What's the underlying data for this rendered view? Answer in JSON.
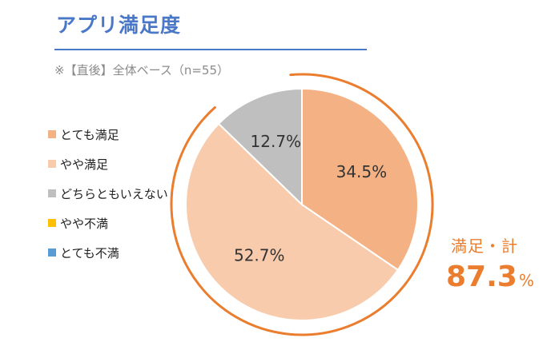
{
  "title": "アプリ満足度",
  "subtitle": "※【直後】全体ベース（n=55）",
  "chart_data": {
    "type": "pie",
    "categories": [
      "とても満足",
      "やや満足",
      "どちらともいえない",
      "やや不満",
      "とても不満"
    ],
    "values": [
      34.5,
      52.7,
      12.7,
      0,
      0
    ],
    "data_labels": [
      "34.5%",
      "52.7%",
      "12.7%",
      "",
      ""
    ],
    "colors": [
      "#f4b183",
      "#f8cbad",
      "#bfbfbf",
      "#ffc000",
      "#5b9bd5"
    ],
    "legend_position": "left"
  },
  "summary": {
    "label": "満足・計",
    "value": "87.3",
    "unit": "%",
    "color": "#ea7d2e"
  }
}
